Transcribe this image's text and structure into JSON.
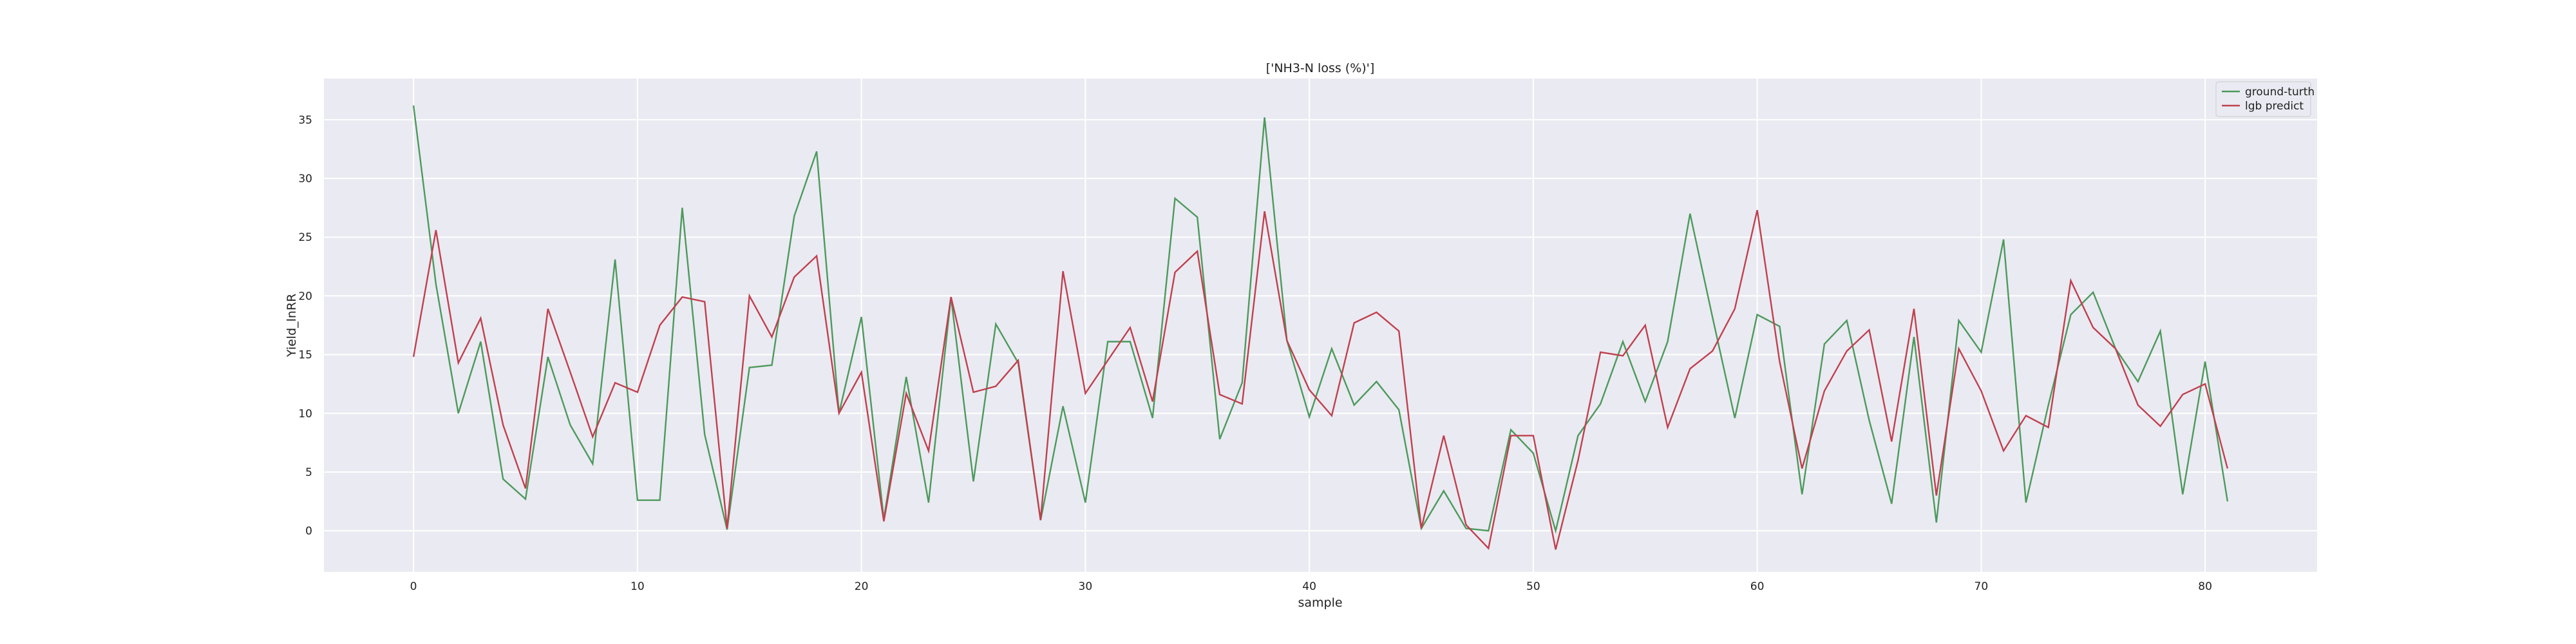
{
  "chart_data": {
    "type": "line",
    "title": "['NH3-N loss (%)']",
    "xlabel": "sample",
    "ylabel": "Yield_lnRR",
    "xlim": [
      -4,
      85
    ],
    "ylim": [
      -3.5,
      38.5
    ],
    "xticks": [
      0,
      10,
      20,
      30,
      40,
      50,
      60,
      70,
      80
    ],
    "yticks": [
      0,
      5,
      10,
      15,
      20,
      25,
      30,
      35
    ],
    "grid": true,
    "legend_position": "top-right",
    "x": [
      0,
      1,
      2,
      3,
      4,
      5,
      6,
      7,
      8,
      9,
      10,
      11,
      12,
      13,
      14,
      15,
      16,
      17,
      18,
      19,
      20,
      21,
      22,
      23,
      24,
      25,
      26,
      27,
      28,
      29,
      30,
      31,
      32,
      33,
      34,
      35,
      36,
      37,
      38,
      39,
      40,
      41,
      42,
      43,
      44,
      45,
      46,
      47,
      48,
      49,
      50,
      51,
      52,
      53,
      54,
      55,
      56,
      57,
      58,
      59,
      60,
      61,
      62,
      63,
      64,
      65,
      66,
      67,
      68,
      69,
      70,
      71,
      72,
      73,
      74,
      75,
      76,
      77,
      78,
      79,
      80,
      81
    ],
    "series": [
      {
        "name": "ground-turth",
        "color": "#4c9a5c",
        "values": [
          36.2,
          21.0,
          10.0,
          16.1,
          4.4,
          2.7,
          14.8,
          9.0,
          5.7,
          23.1,
          2.6,
          2.6,
          27.5,
          8.2,
          0.1,
          13.9,
          14.1,
          26.8,
          32.3,
          10.0,
          18.2,
          1.0,
          13.1,
          2.4,
          19.9,
          4.2,
          17.6,
          14.3,
          0.9,
          10.6,
          2.4,
          16.1,
          16.1,
          9.6,
          28.3,
          26.7,
          7.8,
          12.6,
          35.2,
          16.2,
          9.7,
          15.5,
          10.7,
          12.7,
          10.3,
          0.2,
          3.4,
          0.2,
          0.0,
          8.6,
          6.6,
          0.0,
          8.1,
          10.8,
          16.1,
          11.0,
          16.1,
          27.0,
          18.2,
          9.6,
          18.4,
          17.4,
          3.1,
          15.9,
          17.9,
          9.4,
          2.3,
          16.5,
          0.7,
          17.9,
          15.2,
          24.8,
          2.4,
          10.7,
          18.4,
          20.3,
          15.5,
          12.7,
          17.0,
          3.1,
          14.4,
          2.5
        ]
      },
      {
        "name": "lgb predict",
        "color": "#c0404e",
        "values": [
          14.8,
          25.6,
          14.3,
          18.1,
          9.0,
          3.6,
          18.9,
          13.5,
          8.0,
          12.6,
          11.8,
          17.5,
          19.9,
          19.5,
          0.2,
          20.0,
          16.5,
          21.6,
          23.4,
          10.0,
          13.5,
          0.8,
          11.7,
          6.8,
          19.9,
          11.8,
          12.3,
          14.5,
          0.9,
          22.1,
          11.7,
          14.5,
          17.3,
          11.0,
          22.0,
          23.8,
          11.6,
          10.8,
          27.2,
          16.2,
          12.0,
          9.8,
          17.7,
          18.6,
          17.0,
          0.2,
          8.1,
          0.5,
          -1.5,
          8.1,
          8.1,
          -1.6,
          6.0,
          15.2,
          14.9,
          17.5,
          8.8,
          13.8,
          15.3,
          18.9,
          27.3,
          14.4,
          5.3,
          11.9,
          15.3,
          17.1,
          7.6,
          18.9,
          3.0,
          15.5,
          11.9,
          6.8,
          9.8,
          8.8,
          21.3,
          17.3,
          15.5,
          10.7,
          8.9,
          11.6,
          12.5,
          5.3
        ]
      }
    ]
  }
}
